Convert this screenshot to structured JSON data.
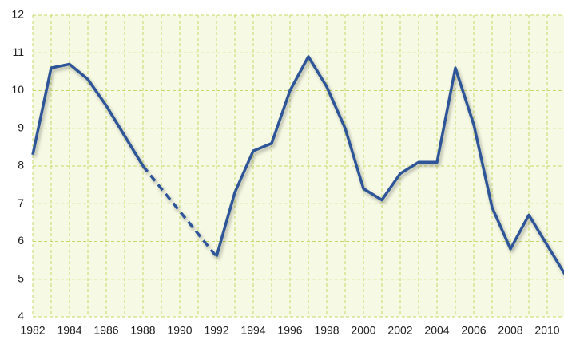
{
  "chart_data": {
    "type": "line",
    "x": [
      1982,
      1983,
      1984,
      1985,
      1986,
      1987,
      1988,
      1989,
      1990,
      1991,
      1992,
      1993,
      1994,
      1995,
      1996,
      1997,
      1998,
      1999,
      2000,
      2001,
      2002,
      2003,
      2004,
      2005,
      2006,
      2007,
      2008,
      2009,
      2010,
      2011
    ],
    "series": [
      {
        "color": "#2e5597",
        "values": [
          8.3,
          10.6,
          10.7,
          10.3,
          9.6,
          8.8,
          8.0,
          null,
          null,
          null,
          5.6,
          7.3,
          8.4,
          8.6,
          10.0,
          10.9,
          10.1,
          9.0,
          7.4,
          7.1,
          7.8,
          8.1,
          8.1,
          10.6,
          9.1,
          6.9,
          5.8,
          6.7,
          5.9,
          5.1
        ]
      }
    ],
    "xlim": [
      1982,
      2011
    ],
    "xticks": [
      1982,
      1984,
      1986,
      1988,
      1990,
      1992,
      1994,
      1996,
      1998,
      2000,
      2002,
      2004,
      2006,
      2008,
      2010
    ],
    "ylim": [
      4,
      12
    ],
    "yticks": [
      4,
      5,
      6,
      7,
      8,
      9,
      10,
      11,
      12
    ],
    "grid": true
  }
}
